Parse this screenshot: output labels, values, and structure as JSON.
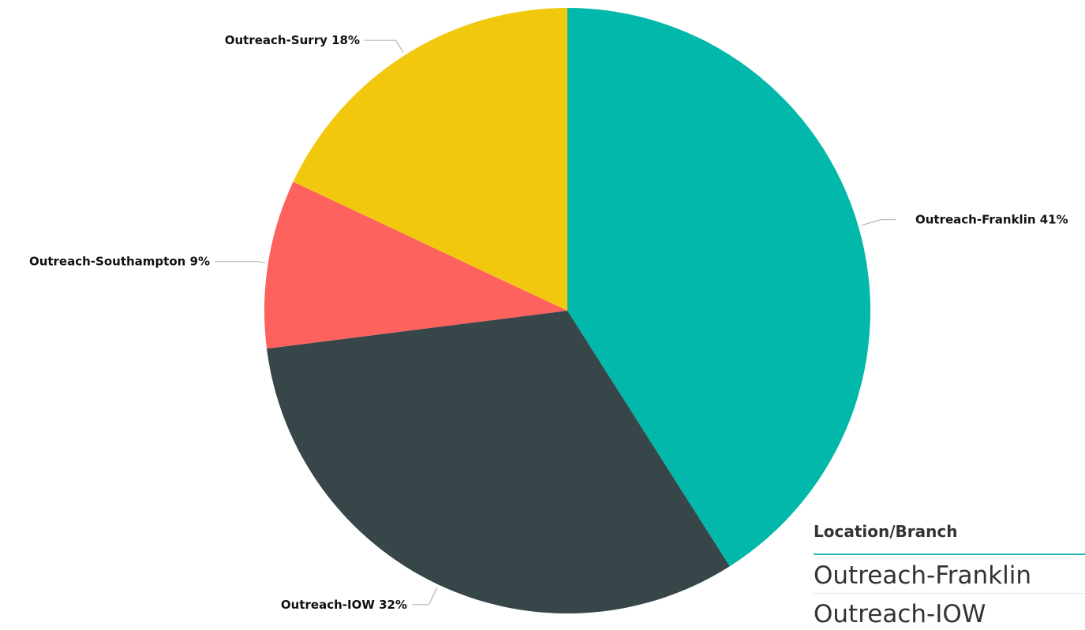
{
  "chart_data": {
    "type": "pie",
    "title": "",
    "slices": [
      {
        "label": "Outreach-Franklin",
        "percent_label": "41%",
        "value": 41,
        "color": "#01B8AA"
      },
      {
        "label": "Outreach-IOW",
        "percent_label": "32%",
        "value": 32,
        "color": "#374649"
      },
      {
        "label": "Outreach-Southampton",
        "percent_label": "9%",
        "value": 9,
        "color": "#FD625E"
      },
      {
        "label": "Outreach-Surry",
        "percent_label": "18%",
        "value": 18,
        "color": "#F2C80F"
      }
    ],
    "start_angle_deg": 0,
    "direction": "clockwise"
  },
  "slicer": {
    "header": "Location/Branch",
    "items": [
      "Outreach-Franklin",
      "Outreach-IOW"
    ],
    "accent_color": "#23b3b0"
  }
}
